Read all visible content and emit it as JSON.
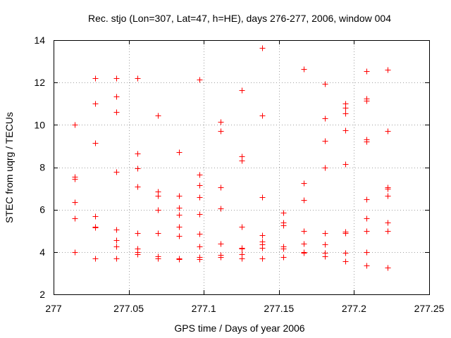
{
  "chart_data": {
    "type": "scatter",
    "title": "Rec. stjo (Lon=307, Lat=47, h=HE), days 276-277, 2006, window 004",
    "xlabel": "GPS time / Days of year 2006",
    "ylabel": "STEC from uqrg / TECUs",
    "xlim": [
      277,
      277.25
    ],
    "ylim": [
      2,
      14
    ],
    "xticks": [
      277,
      277.05,
      277.1,
      277.15,
      277.2,
      277.25
    ],
    "xtick_labels": [
      "277",
      "277.05",
      "277.1",
      "277.15",
      "277.2",
      "277.25"
    ],
    "yticks": [
      2,
      4,
      6,
      8,
      10,
      12,
      14
    ],
    "ytick_labels": [
      "2",
      "4",
      "6",
      "8",
      "10",
      "12",
      "14"
    ],
    "grid": true,
    "marker": "+",
    "color": "#ff0000",
    "series": [
      {
        "name": "STEC",
        "points": [
          [
            277.0139,
            10.0
          ],
          [
            277.0139,
            7.55
          ],
          [
            277.0139,
            7.45
          ],
          [
            277.0139,
            6.35
          ],
          [
            277.0139,
            5.6
          ],
          [
            277.0139,
            4.0
          ],
          [
            277.0278,
            12.2
          ],
          [
            277.0278,
            11.0
          ],
          [
            277.0278,
            9.15
          ],
          [
            277.0278,
            5.7
          ],
          [
            277.0278,
            5.2
          ],
          [
            277.0278,
            5.15
          ],
          [
            277.0278,
            3.7
          ],
          [
            277.0417,
            12.2
          ],
          [
            277.0417,
            11.35
          ],
          [
            277.0417,
            10.6
          ],
          [
            277.0417,
            7.8
          ],
          [
            277.0417,
            5.05
          ],
          [
            277.0417,
            4.55
          ],
          [
            277.0417,
            4.25
          ],
          [
            277.0417,
            3.7
          ],
          [
            277.0556,
            12.2
          ],
          [
            277.0556,
            8.65
          ],
          [
            277.0556,
            7.95
          ],
          [
            277.0556,
            7.1
          ],
          [
            277.0556,
            4.9
          ],
          [
            277.0556,
            4.15
          ],
          [
            277.0556,
            4.0
          ],
          [
            277.0556,
            3.9
          ],
          [
            277.0694,
            10.45
          ],
          [
            277.0694,
            6.85
          ],
          [
            277.0694,
            6.65
          ],
          [
            277.0694,
            6.0
          ],
          [
            277.0694,
            4.9
          ],
          [
            277.0694,
            3.8
          ],
          [
            277.0694,
            3.7
          ],
          [
            277.0833,
            8.7
          ],
          [
            277.0833,
            6.65
          ],
          [
            277.0833,
            6.1
          ],
          [
            277.0833,
            5.75
          ],
          [
            277.0833,
            5.2
          ],
          [
            277.0833,
            4.75
          ],
          [
            277.0833,
            3.7
          ],
          [
            277.0833,
            3.65
          ],
          [
            277.0972,
            12.15
          ],
          [
            277.0972,
            7.65
          ],
          [
            277.0972,
            7.15
          ],
          [
            277.0972,
            6.6
          ],
          [
            277.0972,
            5.8
          ],
          [
            277.0972,
            4.85
          ],
          [
            277.0972,
            4.25
          ],
          [
            277.0972,
            3.75
          ],
          [
            277.0972,
            3.65
          ],
          [
            277.1111,
            10.15
          ],
          [
            277.1111,
            9.7
          ],
          [
            277.1111,
            7.05
          ],
          [
            277.1111,
            6.05
          ],
          [
            277.1111,
            4.4
          ],
          [
            277.1111,
            3.85
          ],
          [
            277.1111,
            3.75
          ],
          [
            277.125,
            11.65
          ],
          [
            277.125,
            8.5
          ],
          [
            277.125,
            8.3
          ],
          [
            277.125,
            5.2
          ],
          [
            277.125,
            4.2
          ],
          [
            277.125,
            4.15
          ],
          [
            277.125,
            3.9
          ],
          [
            277.125,
            3.7
          ],
          [
            277.1389,
            13.65
          ],
          [
            277.1389,
            10.45
          ],
          [
            277.1389,
            6.6
          ],
          [
            277.1389,
            4.8
          ],
          [
            277.1389,
            4.5
          ],
          [
            277.1389,
            4.35
          ],
          [
            277.1389,
            4.2
          ],
          [
            277.1389,
            3.7
          ],
          [
            277.1528,
            5.85
          ],
          [
            277.1528,
            5.4
          ],
          [
            277.1528,
            5.25
          ],
          [
            277.1528,
            4.25
          ],
          [
            277.1528,
            4.15
          ],
          [
            277.1528,
            3.75
          ],
          [
            277.1667,
            12.65
          ],
          [
            277.1667,
            7.25
          ],
          [
            277.1667,
            6.45
          ],
          [
            277.1667,
            5.0
          ],
          [
            277.1667,
            4.4
          ],
          [
            277.1667,
            4.0
          ],
          [
            277.1667,
            3.95
          ],
          [
            277.1806,
            11.95
          ],
          [
            277.1806,
            10.3
          ],
          [
            277.1806,
            9.25
          ],
          [
            277.1806,
            8.0
          ],
          [
            277.1806,
            4.9
          ],
          [
            277.1806,
            4.35
          ],
          [
            277.1806,
            3.95
          ],
          [
            277.1806,
            3.8
          ],
          [
            277.1944,
            11.0
          ],
          [
            277.1944,
            10.8
          ],
          [
            277.1944,
            10.55
          ],
          [
            277.1944,
            9.75
          ],
          [
            277.1944,
            8.15
          ],
          [
            277.1944,
            4.95
          ],
          [
            277.1944,
            4.9
          ],
          [
            277.1944,
            3.95
          ],
          [
            277.1944,
            3.55
          ],
          [
            277.2083,
            12.55
          ],
          [
            277.2083,
            11.25
          ],
          [
            277.2083,
            11.15
          ],
          [
            277.2083,
            9.3
          ],
          [
            277.2083,
            9.2
          ],
          [
            277.2083,
            6.5
          ],
          [
            277.2083,
            5.6
          ],
          [
            277.2083,
            5.0
          ],
          [
            277.2083,
            4.0
          ],
          [
            277.2083,
            3.35
          ],
          [
            277.2222,
            12.6
          ],
          [
            277.2222,
            9.7
          ],
          [
            277.2222,
            7.05
          ],
          [
            277.2222,
            7.0
          ],
          [
            277.2222,
            6.65
          ],
          [
            277.2222,
            5.4
          ],
          [
            277.2222,
            5.0
          ],
          [
            277.2222,
            3.25
          ]
        ]
      }
    ]
  }
}
